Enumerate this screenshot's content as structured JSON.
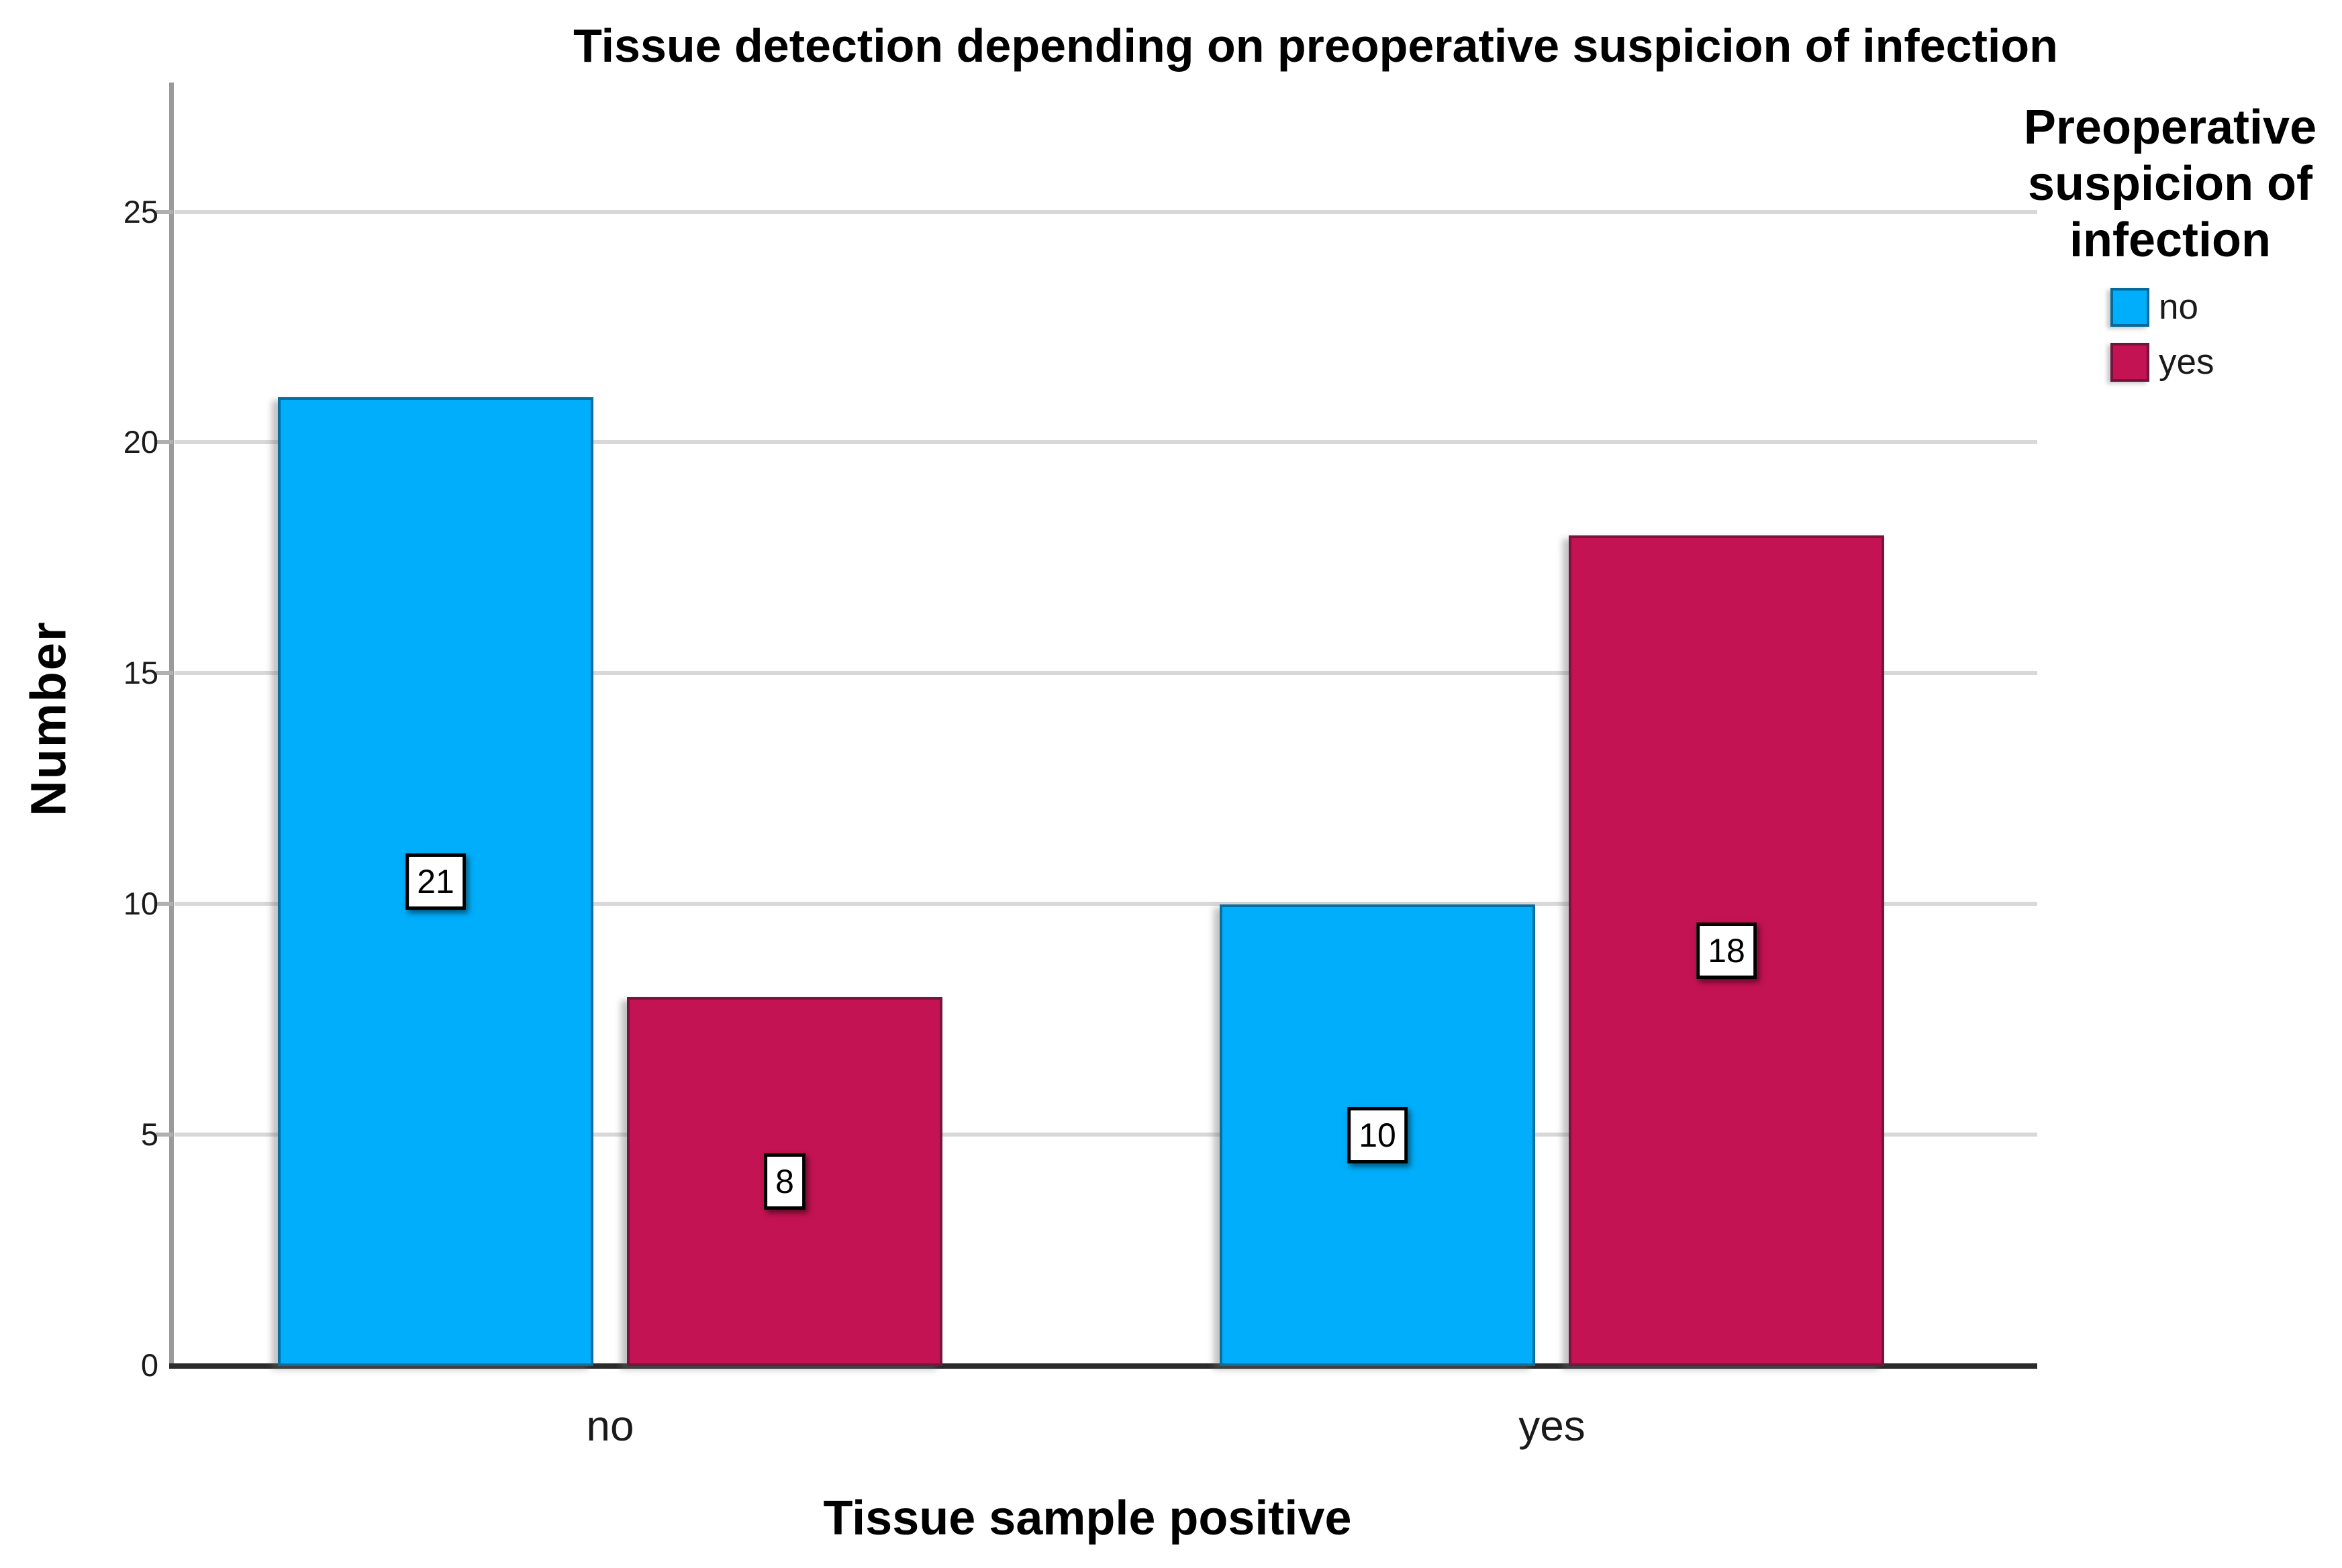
{
  "title": "Tissue detection depending on preoperative suspicion of infection",
  "chart_data": {
    "type": "bar",
    "title": "Tissue detection depending on preoperative suspicion of infection",
    "categories": [
      "no",
      "yes"
    ],
    "series": [
      {
        "name": "no",
        "color": "#00AEFB",
        "values": [
          21,
          10
        ]
      },
      {
        "name": "yes",
        "color": "#C41352",
        "values": [
          8,
          18
        ]
      }
    ],
    "xlabel": "Tissue sample positive",
    "ylabel": "Number",
    "ylim": [
      0,
      27.8
    ],
    "yticks": [
      0,
      5,
      10,
      15,
      20,
      25
    ],
    "grid": true,
    "data_labels_shown": true,
    "legend_title": "Preoperative suspicion of infection",
    "legend_position": "right"
  },
  "colors": {
    "x_axis_line": "#2B2B2B",
    "y_axis_line": "#9A9A9A",
    "gridline": "#D8D8D8",
    "background": "#FFFFFF"
  }
}
